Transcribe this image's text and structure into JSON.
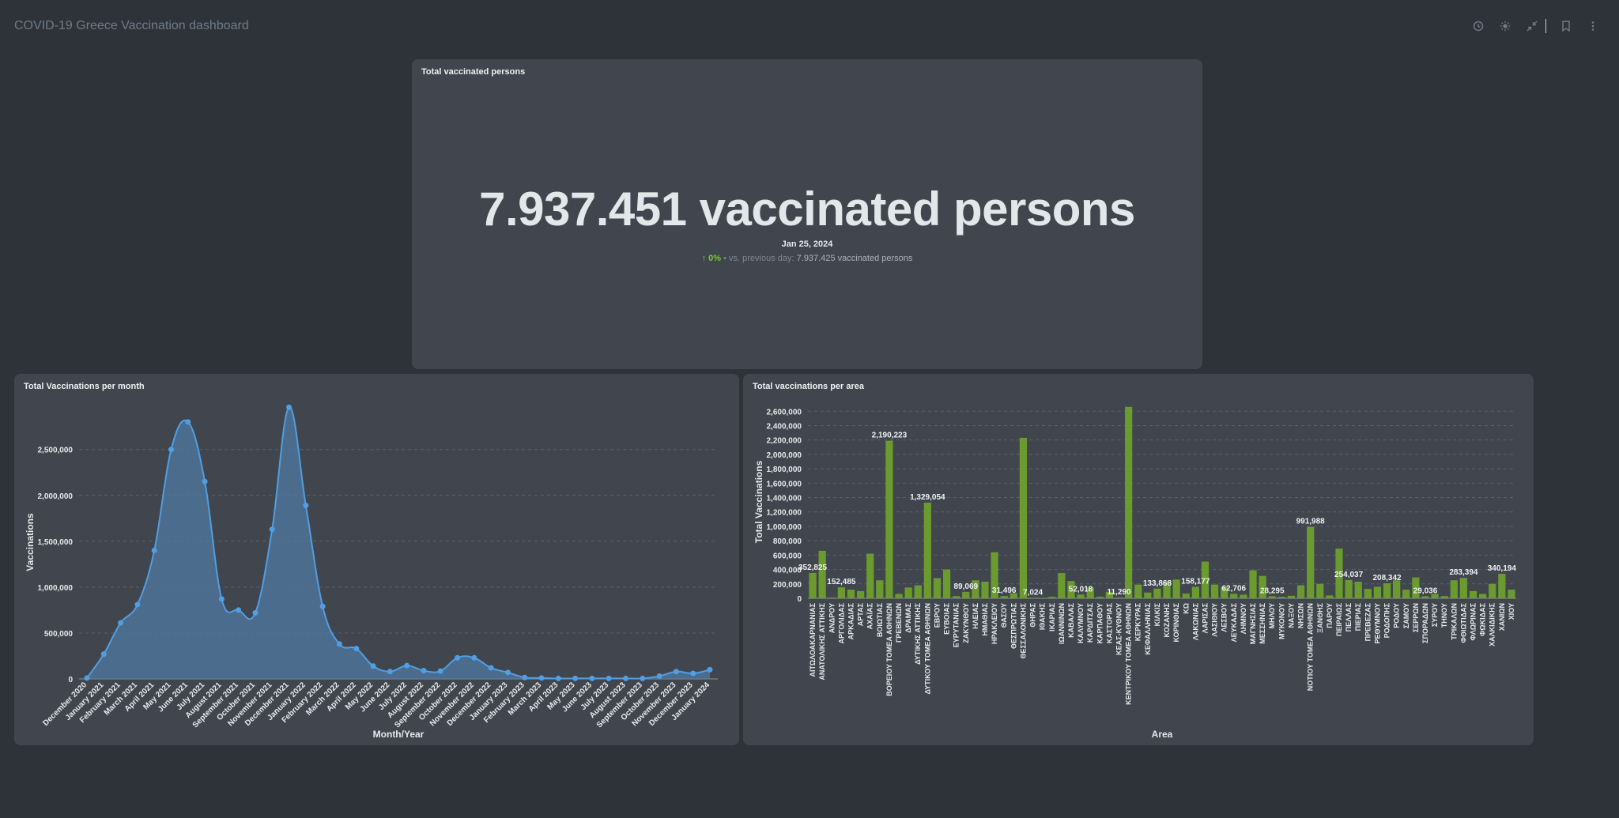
{
  "dashboard": {
    "title": "COVID-19 Greece Vaccination dashboard"
  },
  "topbar": {
    "icons": [
      "clock-icon",
      "sun-icon",
      "collapse-icon",
      "bookmark-icon",
      "more-icon"
    ]
  },
  "colors": {
    "background": "#2e3339",
    "card": "#41464e",
    "line": "#509ee3",
    "bar": "#6b9b2f",
    "trend_up": "#7cc43a"
  },
  "total_card": {
    "title": "Total vaccinated persons",
    "value": "7.937.451 vaccinated persons",
    "date": "Jan 25, 2024",
    "trend_arrow": "↑",
    "trend_pct": "0%",
    "trend_sep": "•",
    "trend_label": "vs. previous day:",
    "trend_prev": "7.937.425 vaccinated persons"
  },
  "month_card": {
    "title": "Total Vaccinations per month"
  },
  "area_card": {
    "title": "Total vaccinations per area"
  },
  "chart_data": [
    {
      "type": "area",
      "title": "Total Vaccinations per month",
      "xlabel": "Month/Year",
      "ylabel": "Vaccinations",
      "ylim": [
        0,
        2800000
      ],
      "yticks": [
        0,
        500000,
        1000000,
        1500000,
        2000000,
        2500000
      ],
      "ytick_labels": [
        "0",
        "500,000",
        "1,000,000",
        "1,500,000",
        "2,000,000",
        "2,500,000"
      ],
      "grid": true,
      "categories": [
        "December 2020",
        "January 2021",
        "February 2021",
        "March 2021",
        "April 2021",
        "May 2021",
        "June 2021",
        "July 2021",
        "August 2021",
        "September 2021",
        "October 2021",
        "November 2021",
        "December 2021",
        "January 2022",
        "February 2022",
        "March 2022",
        "April 2022",
        "May 2022",
        "June 2022",
        "July 2022",
        "August 2022",
        "September 2022",
        "October 2022",
        "November 2022",
        "December 2022",
        "January 2023",
        "February 2023",
        "March 2023",
        "April 2023",
        "May 2023",
        "June 2023",
        "July 2023",
        "August 2023",
        "September 2023",
        "October 2023",
        "November 2023",
        "December 2023",
        "January 2024"
      ],
      "values": [
        10000,
        270000,
        610000,
        810000,
        1400000,
        2500000,
        2800000,
        2150000,
        870000,
        750000,
        720000,
        1630000,
        2960000,
        1890000,
        790000,
        380000,
        330000,
        140000,
        80000,
        145000,
        90000,
        85000,
        230000,
        230000,
        120000,
        70000,
        15000,
        10000,
        5000,
        5000,
        5000,
        5000,
        5000,
        5000,
        30000,
        80000,
        60000,
        100000
      ]
    },
    {
      "type": "bar",
      "title": "Total vaccinations per area",
      "xlabel": "Area",
      "ylabel": "Total Vaccinations",
      "ylim": [
        0,
        2600000
      ],
      "yticks": [
        0,
        200000,
        400000,
        600000,
        800000,
        1000000,
        1200000,
        1400000,
        1600000,
        1800000,
        2000000,
        2200000,
        2400000,
        2600000
      ],
      "ytick_labels": [
        "0",
        "200,000",
        "400,000",
        "600,000",
        "800,000",
        "1,000,000",
        "1,200,000",
        "1,400,000",
        "1,600,000",
        "1,800,000",
        "2,000,000",
        "2,200,000",
        "2,400,000",
        "2,600,000"
      ],
      "grid": true,
      "categories": [
        "ΑΙΤΩΛΟΑΚΑΡΝΑΝΙΑΣ",
        "ΑΝΑΤΟΛΙΚΗΣ ΑΤΤΙΚΗΣ",
        "ΑΝΔΡΟΥ",
        "ΑΡΓΟΛΙΔΑΣ",
        "ΑΡΚΑΔΙΑΣ",
        "ΑΡΤΑΣ",
        "ΑΧΑΪΑΣ",
        "ΒΟΙΩΤΙΑΣ",
        "ΒΟΡΕΙΟΥ ΤΟΜΕΑ ΑΘΗΝΩΝ",
        "ΓΡΕΒΕΝΩΝ",
        "ΔΡΑΜΑΣ",
        "ΔΥΤΙΚΗΣ ΑΤΤΙΚΗΣ",
        "ΔΥΤΙΚΟΥ ΤΟΜΕΑ ΑΘΗΝΩΝ",
        "ΕΒΡΟΥ",
        "ΕΥΒΟΙΑΣ",
        "ΕΥΡΥΤΑΝΙΑΣ",
        "ΖΑΚΥΝΘΟΥ",
        "ΗΛΕΙΑΣ",
        "ΗΜΑΘΙΑΣ",
        "ΗΡΑΚΛΕΙΟΥ",
        "ΘΑΣΟΥ",
        "ΘΕΣΠΡΩΤΙΑΣ",
        "ΘΕΣΣΑΛΟΝΙΚΗΣ",
        "ΘΗΡΑΣ",
        "ΙΘΑΚΗΣ",
        "ΙΚΑΡΙΑΣ",
        "ΙΩΑΝΝΙΝΩΝ",
        "ΚΑΒΑΛΑΣ",
        "ΚΑΛΥΜΝΟΥ",
        "ΚΑΡΔΙΤΣΑΣ",
        "ΚΑΡΠΑΘΟΥ",
        "ΚΑΣΤΟΡΙΑΣ",
        "ΚΕΑΣ-ΚΥΘΝΟΥ",
        "ΚΕΝΤΡΙΚΟΥ ΤΟΜΕΑ ΑΘΗΝΩΝ",
        "ΚΕΡΚΥΡΑΣ",
        "ΚΕΦΑΛΛΗΝΙΑΣ",
        "ΚΙΛΚΙΣ",
        "ΚΟΖΑΝΗΣ",
        "ΚΟΡΙΝΘΙΑΣ",
        "ΚΩ",
        "ΛΑΚΩΝΙΑΣ",
        "ΛΑΡΙΣΑΣ",
        "ΛΑΣΙΘΙΟΥ",
        "ΛΕΣΒΟΥ",
        "ΛΕΥΚΑΔΑΣ",
        "ΛΗΜΝΟΥ",
        "ΜΑΓΝΗΣΙΑΣ",
        "ΜΕΣΣΗΝΙΑΣ",
        "ΜΗΛΟΥ",
        "ΜΥΚΟΝΟΥ",
        "ΝΑΞΟΥ",
        "ΝΗΣΩΝ",
        "ΝΟΤΙΟΥ ΤΟΜΕΑ ΑΘΗΝΩΝ",
        "ΞΑΝΘΗΣ",
        "ΠΑΡΟΥ",
        "ΠΕΙΡΑΙΩΣ",
        "ΠΕΛΛΑΣ",
        "ΠΙΕΡΙΑΣ",
        "ΠΡΕΒΕΖΑΣ",
        "ΡΕΘΥΜΝΟΥ",
        "ΡΟΔΟΠΗΣ",
        "ΡΟΔΟΥ",
        "ΣΑΜΟΥ",
        "ΣΕΡΡΩΝ",
        "ΣΠΟΡΑΔΩΝ",
        "ΣΥΡΟΥ",
        "ΤΗΝΟΥ",
        "ΤΡΙΚΑΛΩΝ",
        "ΦΘΙΩΤΙΔΑΣ",
        "ΦΛΩΡΙΝΑΣ",
        "ΦΩΚΙΔΑΣ",
        "ΧΑΛΚΙΔΙΚΗΣ",
        "ΧΑΝΙΩΝ",
        "ΧΙΟΥ"
      ],
      "values": [
        352825,
        660000,
        10000,
        152485,
        120000,
        100000,
        620000,
        250000,
        2190223,
        60000,
        150000,
        180000,
        1329054,
        280000,
        400000,
        30000,
        89069,
        250000,
        230000,
        640000,
        31496,
        70000,
        2230000,
        7024,
        5000,
        20000,
        350000,
        240000,
        52018,
        150000,
        20000,
        90000,
        11290,
        2660000,
        190000,
        80000,
        133868,
        230000,
        260000,
        65000,
        158177,
        510000,
        190000,
        160000,
        62706,
        50000,
        390000,
        310000,
        28295,
        20000,
        35000,
        180000,
        991988,
        200000,
        40000,
        690000,
        254037,
        230000,
        130000,
        160000,
        208342,
        250000,
        120000,
        290000,
        29036,
        60000,
        30000,
        250000,
        283394,
        100000,
        60000,
        200000,
        340194,
        120000
      ],
      "data_labels": {
        "0": "352,825",
        "3": "152,485",
        "8": "2,190,223",
        "12": "1,329,054",
        "16": "89,069",
        "20": "31,496",
        "23": "7,024",
        "28": "52,018",
        "32": "11,290",
        "36": "133,868",
        "40": "158,177",
        "44": "62,706",
        "48": "28,295",
        "52": "991,988",
        "56": "254,037",
        "60": "208,342",
        "64": "29,036",
        "68": "283,394",
        "72": "340,194"
      }
    }
  ]
}
